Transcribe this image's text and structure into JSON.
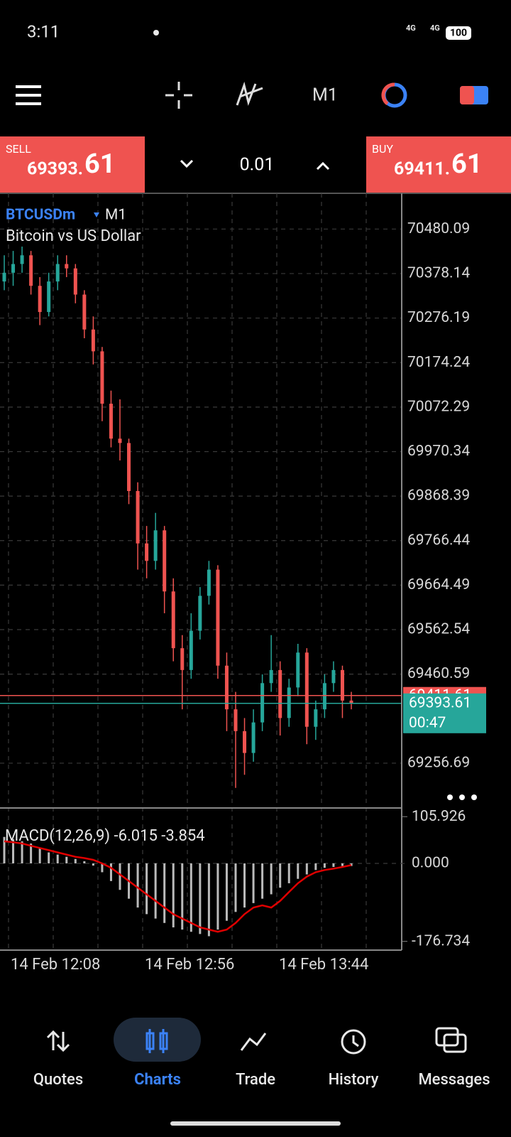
{
  "status": {
    "time": "3:11",
    "net1": "4G",
    "net2": "4G",
    "battery": "100"
  },
  "toolbar": {
    "timeframe": "M1"
  },
  "trade": {
    "sell_label": "SELL",
    "sell_price_head": "69393.",
    "sell_price_tail": "61",
    "lot": "0.01",
    "buy_label": "BUY",
    "buy_price_head": "69411.",
    "buy_price_tail": "61"
  },
  "chart": {
    "symbol": "BTCUSDm",
    "timeframe": "M1",
    "description": "Bitcoin vs US Dollar",
    "up_color": "#26a69a",
    "down_color": "#ef5350",
    "ylim": [
      69154,
      70562
    ],
    "yticks": [
      70480.09,
      70378.14,
      70276.19,
      70174.24,
      70072.29,
      69970.34,
      69868.39,
      69766.44,
      69664.49,
      69562.54,
      69460.59,
      69256.69
    ],
    "ask": 69411.61,
    "bid": 69393.61,
    "countdown": "00:47",
    "candles": [
      [
        70360,
        70420,
        70340,
        70380
      ],
      [
        70380,
        70430,
        70350,
        70400
      ],
      [
        70400,
        70440,
        70380,
        70420
      ],
      [
        70420,
        70430,
        70330,
        70350
      ],
      [
        70350,
        70370,
        70260,
        70290
      ],
      [
        70290,
        70380,
        70280,
        70360
      ],
      [
        70360,
        70420,
        70340,
        70400
      ],
      [
        70400,
        70420,
        70370,
        70390
      ],
      [
        70390,
        70400,
        70310,
        70330
      ],
      [
        70330,
        70340,
        70230,
        70250
      ],
      [
        70250,
        70280,
        70170,
        70200
      ],
      [
        70200,
        70210,
        70040,
        70080
      ],
      [
        70080,
        70110,
        69980,
        70000
      ],
      [
        70000,
        70090,
        69950,
        69990
      ],
      [
        69990,
        70000,
        69850,
        69880
      ],
      [
        69880,
        69900,
        69700,
        69760
      ],
      [
        69760,
        69800,
        69680,
        69720
      ],
      [
        69720,
        69830,
        69700,
        69790
      ],
      [
        69790,
        69800,
        69600,
        69650
      ],
      [
        69650,
        69680,
        69490,
        69520
      ],
      [
        69520,
        69550,
        69380,
        69470
      ],
      [
        69470,
        69600,
        69450,
        69560
      ],
      [
        69560,
        69660,
        69540,
        69640
      ],
      [
        69640,
        69720,
        69620,
        69700
      ],
      [
        69700,
        69710,
        69450,
        69480
      ],
      [
        69480,
        69510,
        69330,
        69380
      ],
      [
        69380,
        69420,
        69200,
        69330
      ],
      [
        69330,
        69360,
        69230,
        69280
      ],
      [
        69280,
        69380,
        69260,
        69350
      ],
      [
        69350,
        69460,
        69330,
        69440
      ],
      [
        69440,
        69550,
        69420,
        69470
      ],
      [
        69470,
        69490,
        69320,
        69360
      ],
      [
        69360,
        69450,
        69340,
        69430
      ],
      [
        69430,
        69530,
        69410,
        69510
      ],
      [
        69510,
        69520,
        69300,
        69340
      ],
      [
        69340,
        69400,
        69310,
        69380
      ],
      [
        69380,
        69460,
        69360,
        69440
      ],
      [
        69440,
        69490,
        69420,
        69470
      ],
      [
        69470,
        69480,
        69360,
        69400
      ],
      [
        69400,
        69420,
        69380,
        69393.61
      ]
    ],
    "macd": {
      "label": "MACD(12,26,9) -6.015 -3.854",
      "ylim": [
        -196.5,
        125.6
      ],
      "yticks": [
        105.926,
        {
          "value": 0,
          "label": "0.000"
        },
        -176.734
      ],
      "histogram": [
        60,
        55,
        50,
        45,
        35,
        25,
        20,
        15,
        10,
        5,
        -5,
        -20,
        -40,
        -60,
        -80,
        -100,
        -115,
        -125,
        -135,
        -145,
        -150,
        -155,
        -160,
        -165,
        -150,
        -130,
        -110,
        -100,
        -90,
        -80,
        -70,
        -55,
        -45,
        -35,
        -25,
        -15,
        -10,
        -8,
        -6,
        -6.015
      ],
      "signal": [
        50,
        48,
        45,
        40,
        35,
        30,
        25,
        20,
        15,
        12,
        8,
        0,
        -10,
        -25,
        -40,
        -55,
        -70,
        -85,
        -100,
        -115,
        -125,
        -135,
        -145,
        -150,
        -155,
        -150,
        -135,
        -115,
        -100,
        -95,
        -100,
        -85,
        -65,
        -45,
        -30,
        -20,
        -15,
        -12,
        -8,
        -3.854
      ],
      "signal_color": "#e00000"
    },
    "x_labels": [
      "14 Feb 12:08",
      "14 Feb 12:56",
      "14 Feb 13:44"
    ]
  },
  "nav": [
    "Quotes",
    "Charts",
    "Trade",
    "History",
    "Messages"
  ]
}
